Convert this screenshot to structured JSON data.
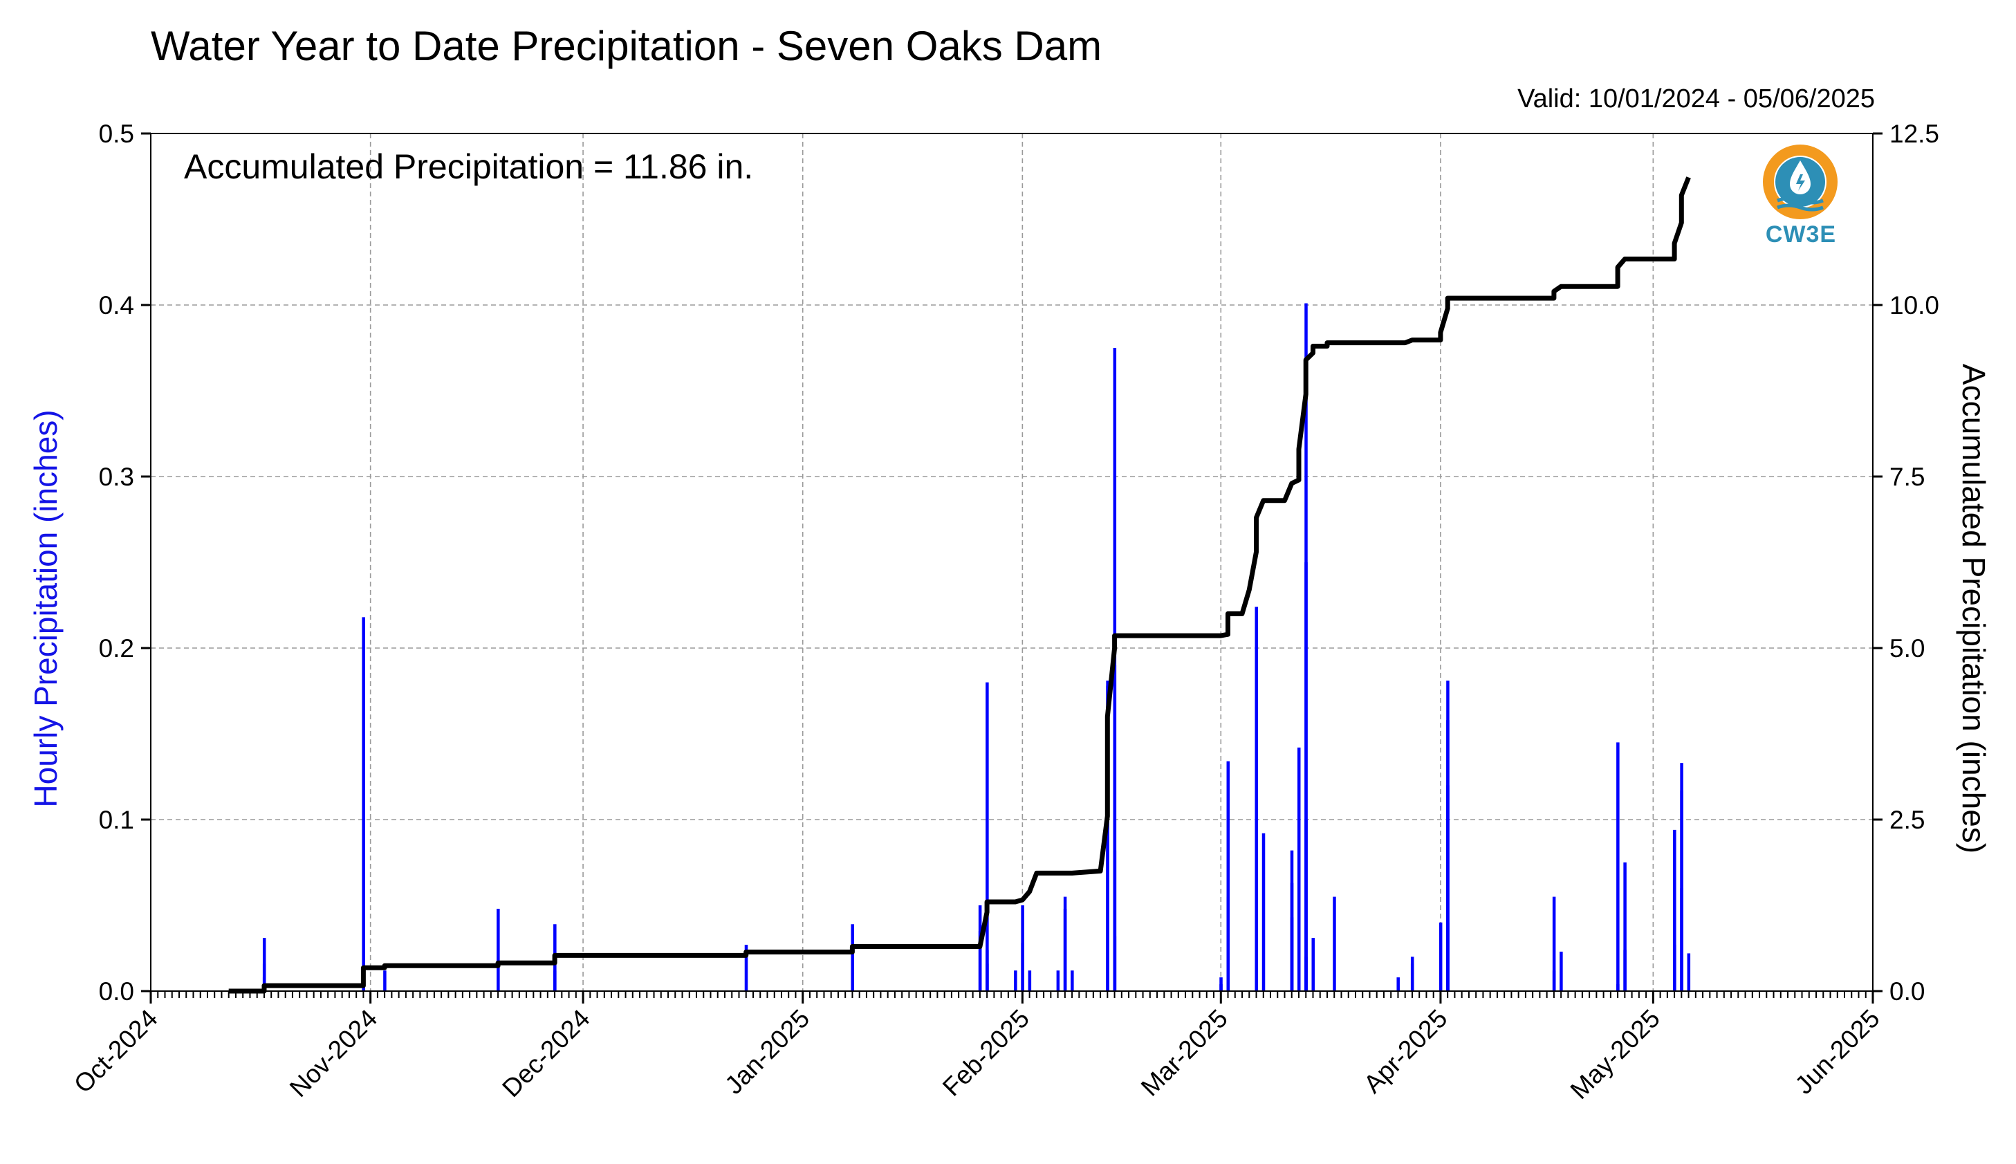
{
  "header": {
    "title": "Water Year to Date Precipitation - Seven Oaks Dam",
    "valid": "Valid: 10/01/2024 - 05/06/2025"
  },
  "annotation": {
    "accumulated": "Accumulated Precipitation = 11.86 in."
  },
  "logo": {
    "text": "CW3E",
    "icon": "cw3e-logo-icon",
    "colors": {
      "ring": "#f39a1e",
      "drop": "#2d8fb6"
    }
  },
  "chart_data": {
    "type": "bar",
    "xlabel": "",
    "x_range": [
      "2024-10-01",
      "2025-06-01"
    ],
    "x_ticks": [
      "Oct-2024",
      "Nov-2024",
      "Dec-2024",
      "Jan-2025",
      "Feb-2025",
      "Mar-2025",
      "Apr-2025",
      "May-2025",
      "Jun-2025"
    ],
    "x_tick_dates": [
      "2024-10-01",
      "2024-11-01",
      "2024-12-01",
      "2025-01-01",
      "2025-02-01",
      "2025-03-01",
      "2025-04-01",
      "2025-05-01",
      "2025-06-01"
    ],
    "ylabel_left": "Hourly Precipitation (inches)",
    "ylabel_right": "Accumulated Precipitation (inches)",
    "ylim_left": [
      0,
      0.5
    ],
    "ylim_right": [
      0,
      12.5
    ],
    "yticks_left": [
      "0.0",
      "0.1",
      "0.2",
      "0.3",
      "0.4",
      "0.5"
    ],
    "yticks_right": [
      "0.0",
      "2.5",
      "5.0",
      "7.5",
      "10.0",
      "12.5"
    ],
    "grid": true,
    "colors": {
      "hourly": "#0000ff",
      "accumulated": "#000000",
      "grid": "#9a9a9a"
    },
    "series": [
      {
        "type": "bar",
        "axis": "left",
        "points": [
          [
            "2024-10-17",
            0.031
          ],
          [
            "2024-10-17",
            0.016
          ],
          [
            "2024-10-17",
            0.008
          ],
          [
            "2024-10-31",
            0.218
          ],
          [
            "2024-10-31",
            0.004
          ],
          [
            "2024-11-03",
            0.012
          ],
          [
            "2024-11-19",
            0.048
          ],
          [
            "2024-11-27",
            0.039
          ],
          [
            "2024-11-27",
            0.012
          ],
          [
            "2024-12-24",
            0.027
          ],
          [
            "2025-01-08",
            0.039
          ],
          [
            "2025-01-26",
            0.035
          ],
          [
            "2025-01-26",
            0.05
          ],
          [
            "2025-01-27",
            0.18
          ],
          [
            "2025-01-27",
            0.024
          ],
          [
            "2025-01-27",
            0.016
          ],
          [
            "2025-01-31",
            0.012
          ],
          [
            "2025-02-01",
            0.05
          ],
          [
            "2025-02-01",
            0.028
          ],
          [
            "2025-02-02",
            0.012
          ],
          [
            "2025-02-06",
            0.012
          ],
          [
            "2025-02-07",
            0.055
          ],
          [
            "2025-02-07",
            0.048
          ],
          [
            "2025-02-08",
            0.012
          ],
          [
            "2025-02-13",
            0.09
          ],
          [
            "2025-02-13",
            0.178
          ],
          [
            "2025-02-13",
            0.181
          ],
          [
            "2025-02-14",
            0.375
          ],
          [
            "2025-02-14",
            0.19
          ],
          [
            "2025-02-14",
            0.082
          ],
          [
            "2025-02-14",
            0.032
          ],
          [
            "2025-03-01",
            0.004
          ],
          [
            "2025-03-01",
            0.008
          ],
          [
            "2025-03-02",
            0.134
          ],
          [
            "2025-03-02",
            0.055
          ],
          [
            "2025-03-02",
            0.02
          ],
          [
            "2025-03-06",
            0.113
          ],
          [
            "2025-03-06",
            0.193
          ],
          [
            "2025-03-06",
            0.224
          ],
          [
            "2025-03-06",
            0.123
          ],
          [
            "2025-03-07",
            0.092
          ],
          [
            "2025-03-11",
            0.063
          ],
          [
            "2025-03-11",
            0.082
          ],
          [
            "2025-03-11",
            0.043
          ],
          [
            "2025-03-12",
            0.1
          ],
          [
            "2025-03-12",
            0.142
          ],
          [
            "2025-03-13",
            0.401
          ],
          [
            "2025-03-13",
            0.25
          ],
          [
            "2025-03-13",
            0.1
          ],
          [
            "2025-03-13",
            0.02
          ],
          [
            "2025-03-14",
            0.031
          ],
          [
            "2025-03-17",
            0.055
          ],
          [
            "2025-03-26",
            0.008
          ],
          [
            "2025-03-28",
            0.02
          ],
          [
            "2025-03-28",
            0.016
          ],
          [
            "2025-04-01",
            0.04
          ],
          [
            "2025-04-02",
            0.158
          ],
          [
            "2025-04-02",
            0.181
          ],
          [
            "2025-04-02",
            0.12
          ],
          [
            "2025-04-02",
            0.04
          ],
          [
            "2025-04-17",
            0.012
          ],
          [
            "2025-04-17",
            0.055
          ],
          [
            "2025-04-18",
            0.023
          ],
          [
            "2025-04-26",
            0.004
          ],
          [
            "2025-04-26",
            0.145
          ],
          [
            "2025-04-27",
            0.075
          ],
          [
            "2025-04-27",
            0.024
          ],
          [
            "2025-05-04",
            0.027
          ],
          [
            "2025-05-04",
            0.094
          ],
          [
            "2025-05-05",
            0.117
          ],
          [
            "2025-05-05",
            0.133
          ],
          [
            "2025-05-05",
            0.06
          ],
          [
            "2025-05-06",
            0.022
          ]
        ]
      },
      {
        "type": "line",
        "axis": "right",
        "step": true,
        "points": [
          [
            "2024-10-12",
            0.0
          ],
          [
            "2024-10-17",
            0.0
          ],
          [
            "2024-10-17",
            0.08
          ],
          [
            "2024-10-31",
            0.08
          ],
          [
            "2024-10-31",
            0.34
          ],
          [
            "2024-11-03",
            0.34
          ],
          [
            "2024-11-03",
            0.37
          ],
          [
            "2024-11-19",
            0.37
          ],
          [
            "2024-11-19",
            0.41
          ],
          [
            "2024-11-27",
            0.41
          ],
          [
            "2024-11-27",
            0.52
          ],
          [
            "2024-12-24",
            0.52
          ],
          [
            "2024-12-24",
            0.57
          ],
          [
            "2025-01-08",
            0.57
          ],
          [
            "2025-01-08",
            0.65
          ],
          [
            "2025-01-26",
            0.65
          ],
          [
            "2025-01-27",
            1.15
          ],
          [
            "2025-01-27",
            1.3
          ],
          [
            "2025-01-31",
            1.3
          ],
          [
            "2025-02-01",
            1.33
          ],
          [
            "2025-02-02",
            1.45
          ],
          [
            "2025-02-03",
            1.72
          ],
          [
            "2025-02-08",
            1.72
          ],
          [
            "2025-02-12",
            1.75
          ],
          [
            "2025-02-13",
            2.55
          ],
          [
            "2025-02-13",
            4.0
          ],
          [
            "2025-02-14",
            5.0
          ],
          [
            "2025-02-14",
            5.18
          ],
          [
            "2025-03-01",
            5.18
          ],
          [
            "2025-03-02",
            5.2
          ],
          [
            "2025-03-02",
            5.5
          ],
          [
            "2025-03-04",
            5.5
          ],
          [
            "2025-03-05",
            5.85
          ],
          [
            "2025-03-06",
            6.4
          ],
          [
            "2025-03-06",
            6.9
          ],
          [
            "2025-03-07",
            7.15
          ],
          [
            "2025-03-10",
            7.15
          ],
          [
            "2025-03-11",
            7.4
          ],
          [
            "2025-03-12",
            7.45
          ],
          [
            "2025-03-12",
            7.9
          ],
          [
            "2025-03-13",
            8.7
          ],
          [
            "2025-03-13",
            9.2
          ],
          [
            "2025-03-14",
            9.3
          ],
          [
            "2025-03-14",
            9.4
          ],
          [
            "2025-03-16",
            9.4
          ],
          [
            "2025-03-16",
            9.45
          ],
          [
            "2025-03-27",
            9.45
          ],
          [
            "2025-03-28",
            9.49
          ],
          [
            "2025-04-01",
            9.49
          ],
          [
            "2025-04-01",
            9.6
          ],
          [
            "2025-04-02",
            9.95
          ],
          [
            "2025-04-02",
            10.1
          ],
          [
            "2025-04-17",
            10.1
          ],
          [
            "2025-04-17",
            10.2
          ],
          [
            "2025-04-18",
            10.27
          ],
          [
            "2025-04-26",
            10.27
          ],
          [
            "2025-04-26",
            10.55
          ],
          [
            "2025-04-27",
            10.67
          ],
          [
            "2025-05-04",
            10.67
          ],
          [
            "2025-05-04",
            10.9
          ],
          [
            "2025-05-05",
            11.2
          ],
          [
            "2025-05-05",
            11.6
          ],
          [
            "2025-05-06",
            11.86
          ]
        ]
      }
    ]
  }
}
